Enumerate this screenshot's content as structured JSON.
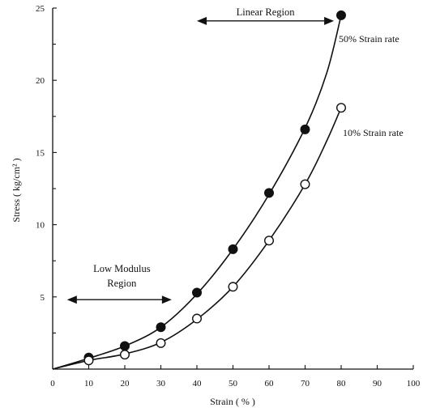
{
  "chart_data": {
    "type": "line",
    "xlabel": "Strain ( % )",
    "ylabel": "Stress ( kg/cm² )",
    "xlim": [
      0,
      100
    ],
    "ylim": [
      0,
      25
    ],
    "x_ticks": [
      0,
      10,
      20,
      30,
      40,
      50,
      60,
      70,
      80,
      90,
      100
    ],
    "y_tick_labels": [
      5,
      10,
      15,
      20,
      25
    ],
    "y_minor_ticks": [
      2.5,
      7.5,
      12.5,
      17.5,
      22.5
    ],
    "grid": false,
    "series": [
      {
        "name": "50% Strain rate",
        "marker": "filled-circle",
        "x": [
          10,
          20,
          30,
          40,
          50,
          60,
          70,
          80
        ],
        "y": [
          0.8,
          1.6,
          2.9,
          5.3,
          8.3,
          12.2,
          16.6,
          24.5
        ],
        "curve": [
          [
            0,
            0
          ],
          [
            10,
            0.75
          ],
          [
            20,
            1.6
          ],
          [
            30,
            2.9
          ],
          [
            40,
            5.2
          ],
          [
            50,
            8.3
          ],
          [
            60,
            12.1
          ],
          [
            70,
            16.7
          ],
          [
            76,
            20.5
          ],
          [
            80,
            24.5
          ]
        ]
      },
      {
        "name": "10% Strain rate",
        "marker": "open-circle",
        "x": [
          10,
          20,
          30,
          40,
          50,
          60,
          70,
          80
        ],
        "y": [
          0.6,
          1.0,
          1.8,
          3.5,
          5.7,
          8.9,
          12.8,
          18.1
        ],
        "curve": [
          [
            0,
            0
          ],
          [
            10,
            0.6
          ],
          [
            20,
            1.05
          ],
          [
            30,
            1.85
          ],
          [
            40,
            3.45
          ],
          [
            50,
            5.7
          ],
          [
            60,
            8.9
          ],
          [
            70,
            12.8
          ],
          [
            76,
            15.8
          ],
          [
            80,
            18.1
          ]
        ]
      }
    ],
    "annotations": [
      {
        "name": "Linear Region",
        "lines": [
          "Linear Region"
        ],
        "x_range": [
          40,
          78
        ],
        "y": 24.0
      },
      {
        "name": "Low Modulus Region",
        "lines": [
          "Low Modulus",
          "Region"
        ],
        "x_range": [
          4,
          33
        ],
        "y": 5.2
      }
    ]
  }
}
